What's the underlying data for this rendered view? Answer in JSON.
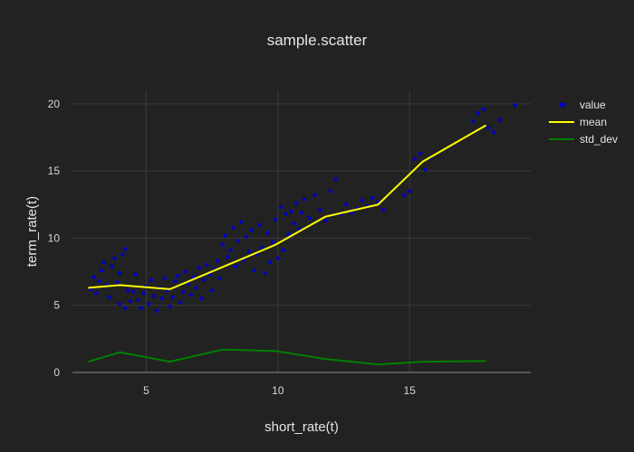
{
  "chart_data": {
    "type": "scatter",
    "title": "sample.scatter",
    "xlabel": "short_rate(t)",
    "ylabel": "term_rate(t)",
    "xlim": [
      2.2,
      19.6
    ],
    "ylim": [
      0,
      21
    ],
    "x_ticks": [
      5,
      10,
      15
    ],
    "y_ticks": [
      0,
      5,
      10,
      15,
      20
    ],
    "grid": true,
    "legend": "top-right",
    "series": [
      {
        "name": "value",
        "kind": "markers",
        "color": "#0000cd",
        "points": [
          [
            2.9,
            6.2
          ],
          [
            3.0,
            7.1
          ],
          [
            3.1,
            5.9
          ],
          [
            3.2,
            6.8
          ],
          [
            3.3,
            7.6
          ],
          [
            3.4,
            8.2
          ],
          [
            3.5,
            6.5
          ],
          [
            3.6,
            5.6
          ],
          [
            3.7,
            7.9
          ],
          [
            3.8,
            8.5
          ],
          [
            3.9,
            6.7
          ],
          [
            4.0,
            7.4
          ],
          [
            4.1,
            8.8
          ],
          [
            4.2,
            9.2
          ],
          [
            4.3,
            6.1
          ],
          [
            4.4,
            5.3
          ],
          [
            4.0,
            5.1
          ],
          [
            4.2,
            4.8
          ],
          [
            4.5,
            6.0
          ],
          [
            4.6,
            7.3
          ],
          [
            4.7,
            5.4
          ],
          [
            4.8,
            4.8
          ],
          [
            4.9,
            5.9
          ],
          [
            5.0,
            6.4
          ],
          [
            5.1,
            5.1
          ],
          [
            5.2,
            6.9
          ],
          [
            5.3,
            5.7
          ],
          [
            5.4,
            4.6
          ],
          [
            5.5,
            6.3
          ],
          [
            5.6,
            5.5
          ],
          [
            5.7,
            7.0
          ],
          [
            5.8,
            6.1
          ],
          [
            5.9,
            4.9
          ],
          [
            6.0,
            5.6
          ],
          [
            6.1,
            6.8
          ],
          [
            6.2,
            7.2
          ],
          [
            6.3,
            5.2
          ],
          [
            6.4,
            6.0
          ],
          [
            6.5,
            7.5
          ],
          [
            6.6,
            6.6
          ],
          [
            6.7,
            5.8
          ],
          [
            6.8,
            7.1
          ],
          [
            6.9,
            6.3
          ],
          [
            7.0,
            7.8
          ],
          [
            7.1,
            5.5
          ],
          [
            7.2,
            6.9
          ],
          [
            7.3,
            8.0
          ],
          [
            7.4,
            7.3
          ],
          [
            7.5,
            6.1
          ],
          [
            7.6,
            7.7
          ],
          [
            7.7,
            8.3
          ],
          [
            7.8,
            7.0
          ],
          [
            7.9,
            9.5
          ],
          [
            8.0,
            10.2
          ],
          [
            8.1,
            8.6
          ],
          [
            8.2,
            9.1
          ],
          [
            8.3,
            10.8
          ],
          [
            8.4,
            7.9
          ],
          [
            8.5,
            9.8
          ],
          [
            8.6,
            11.2
          ],
          [
            8.7,
            8.4
          ],
          [
            8.8,
            10.1
          ],
          [
            8.9,
            9.0
          ],
          [
            9.0,
            10.6
          ],
          [
            9.1,
            7.6
          ],
          [
            9.2,
            8.8
          ],
          [
            9.3,
            11.0
          ],
          [
            9.4,
            9.3
          ],
          [
            9.5,
            7.4
          ],
          [
            9.6,
            10.4
          ],
          [
            9.7,
            8.2
          ],
          [
            9.8,
            9.7
          ],
          [
            9.9,
            11.4
          ],
          [
            10.0,
            8.5
          ],
          [
            10.1,
            12.3
          ],
          [
            10.2,
            9.1
          ],
          [
            10.3,
            11.8
          ],
          [
            10.4,
            10.3
          ],
          [
            10.5,
            12.0
          ],
          [
            10.6,
            11.1
          ],
          [
            10.7,
            12.6
          ],
          [
            10.8,
            10.7
          ],
          [
            10.9,
            11.9
          ],
          [
            11.0,
            12.9
          ],
          [
            11.2,
            11.5
          ],
          [
            11.4,
            13.2
          ],
          [
            11.6,
            12.1
          ],
          [
            11.8,
            11.3
          ],
          [
            12.0,
            13.5
          ],
          [
            12.2,
            14.4
          ],
          [
            12.4,
            11.8
          ],
          [
            12.6,
            12.5
          ],
          [
            12.8,
            11.9
          ],
          [
            13.0,
            12.2
          ],
          [
            13.2,
            12.8
          ],
          [
            13.4,
            12.4
          ],
          [
            13.6,
            13.0
          ],
          [
            13.8,
            12.7
          ],
          [
            14.0,
            12.1
          ],
          [
            14.8,
            13.2
          ],
          [
            15.0,
            13.5
          ],
          [
            15.2,
            15.9
          ],
          [
            15.4,
            16.3
          ],
          [
            15.6,
            15.1
          ],
          [
            15.8,
            16.0
          ],
          [
            17.4,
            18.7
          ],
          [
            17.6,
            19.3
          ],
          [
            17.8,
            19.6
          ],
          [
            18.0,
            18.2
          ],
          [
            18.2,
            17.9
          ],
          [
            18.4,
            18.8
          ],
          [
            19.0,
            19.9
          ]
        ]
      },
      {
        "name": "mean",
        "kind": "line",
        "color": "#ffff00",
        "points": [
          [
            2.8,
            6.3
          ],
          [
            4.0,
            6.5
          ],
          [
            5.9,
            6.2
          ],
          [
            9.9,
            9.5
          ],
          [
            11.8,
            11.6
          ],
          [
            13.8,
            12.5
          ],
          [
            15.5,
            15.7
          ],
          [
            17.9,
            18.4
          ]
        ]
      },
      {
        "name": "std_dev",
        "kind": "line",
        "color": "#008000",
        "points": [
          [
            2.8,
            0.8
          ],
          [
            4.0,
            1.5
          ],
          [
            5.9,
            0.8
          ],
          [
            7.9,
            1.7
          ],
          [
            9.9,
            1.6
          ],
          [
            11.8,
            1.0
          ],
          [
            13.8,
            0.6
          ],
          [
            15.5,
            0.8
          ],
          [
            17.9,
            0.85
          ]
        ]
      }
    ]
  }
}
